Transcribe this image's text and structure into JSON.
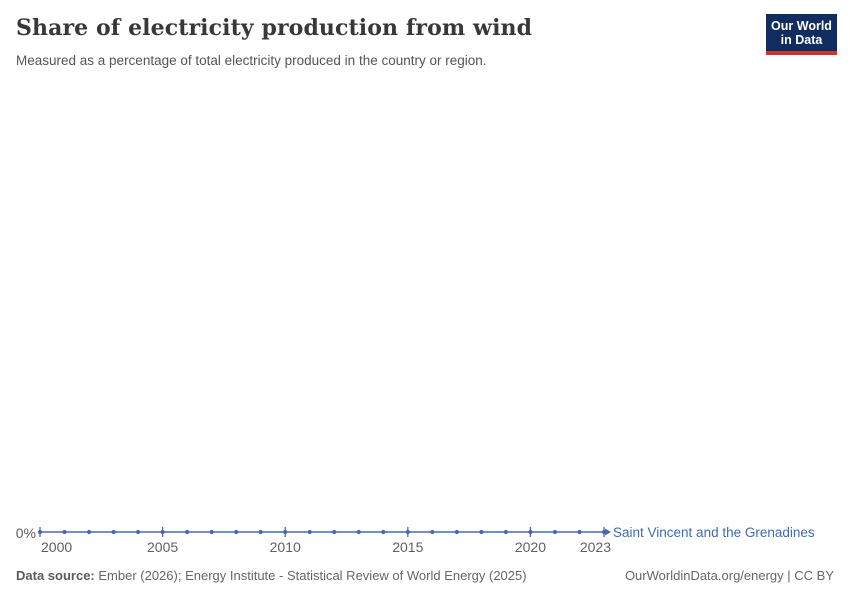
{
  "header": {
    "title": "Share of electricity production from wind",
    "subtitle": "Measured as a percentage of total electricity produced in the country or region.",
    "logo": {
      "line1": "Our World",
      "line2": "in Data",
      "bg_color": "#112c5f",
      "accent_color": "#c9362c"
    }
  },
  "chart_data": {
    "type": "line",
    "title": "Share of electricity production from wind",
    "subtitle": "Measured as a percentage of total electricity produced in the country or region.",
    "unit": "%",
    "xlabel": "",
    "ylabel": "",
    "grid": false,
    "legend_position": "end-of-line",
    "xlim": [
      2000,
      2023
    ],
    "x_ticks": [
      2000,
      2005,
      2010,
      2015,
      2020,
      2023
    ],
    "y_tick_labels": [
      "0%"
    ],
    "y_axis": {
      "tick_label": "0%"
    },
    "series": [
      {
        "name": "Saint Vincent and the Grenadines",
        "color": "#4a69ad",
        "label_color": "#3d6bb5",
        "x": [
          2000,
          2001,
          2002,
          2003,
          2004,
          2005,
          2006,
          2007,
          2008,
          2009,
          2010,
          2011,
          2012,
          2013,
          2014,
          2015,
          2016,
          2017,
          2018,
          2019,
          2020,
          2021,
          2022,
          2023
        ],
        "values": [
          0,
          0,
          0,
          0,
          0,
          0,
          0,
          0,
          0,
          0,
          0,
          0,
          0,
          0,
          0,
          0,
          0,
          0,
          0,
          0,
          0,
          0,
          0,
          0
        ]
      }
    ]
  },
  "footer": {
    "source_label": "Data source:",
    "source_text": " Ember (2026); Energy Institute - Statistical Review of World Energy (2025)",
    "link_text": "OurWorldinData.org/energy | CC BY"
  }
}
